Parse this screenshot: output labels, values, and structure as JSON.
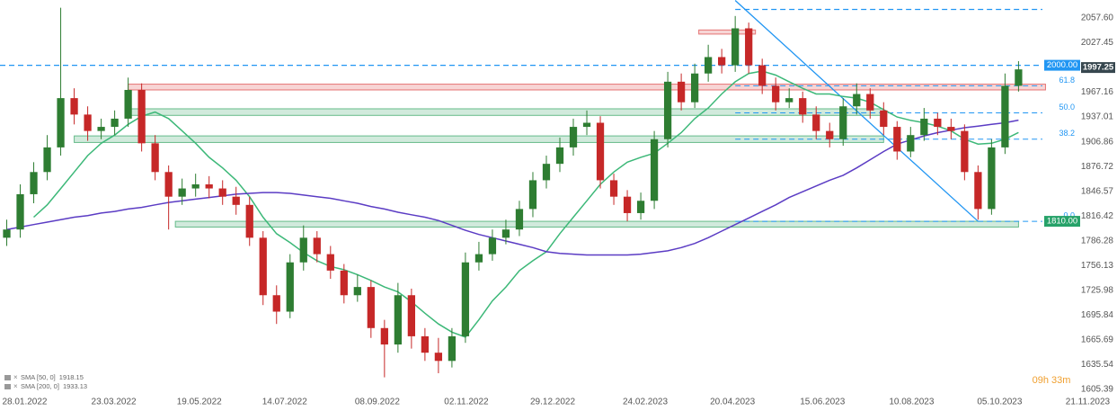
{
  "chart_data": {
    "type": "candlestick",
    "x": [
      0,
      1,
      2,
      3,
      4,
      5,
      6,
      7,
      8,
      9,
      10,
      11,
      12,
      13,
      14,
      15,
      16,
      17,
      18,
      19,
      20,
      21,
      22,
      23,
      24,
      25,
      26,
      27,
      28,
      29,
      30,
      31,
      32,
      33,
      34,
      35,
      36,
      37,
      38,
      39,
      40,
      41,
      42,
      43,
      44,
      45,
      46,
      47,
      48,
      49,
      50,
      51,
      52,
      53,
      54,
      55,
      56,
      57,
      58,
      59,
      60,
      61,
      62,
      63,
      64,
      65,
      66,
      67,
      68,
      69,
      70,
      71,
      72,
      73,
      74,
      75
    ],
    "open": [
      1790,
      1800,
      1843,
      1870,
      1900,
      1960,
      1940,
      1920,
      1925,
      1935,
      1970,
      1905,
      1870,
      1840,
      1850,
      1855,
      1850,
      1840,
      1830,
      1790,
      1720,
      1700,
      1760,
      1790,
      1770,
      1750,
      1720,
      1730,
      1680,
      1660,
      1720,
      1670,
      1650,
      1640,
      1670,
      1760,
      1770,
      1790,
      1800,
      1825,
      1860,
      1880,
      1900,
      1925,
      1930,
      1860,
      1840,
      1820,
      1835,
      1910,
      1980,
      1955,
      1990,
      2010,
      2000,
      2045,
      2000,
      1975,
      1955,
      1960,
      1940,
      1920,
      1910,
      1950,
      1965,
      1945,
      1925,
      1895,
      1915,
      1935,
      1925,
      1920,
      1870,
      1825,
      1900,
      1975
    ],
    "high": [
      1812,
      1855,
      1882,
      1915,
      2070,
      1972,
      1950,
      1935,
      1945,
      1985,
      1978,
      1915,
      1878,
      1862,
      1868,
      1865,
      1860,
      1852,
      1840,
      1798,
      1732,
      1770,
      1805,
      1798,
      1780,
      1758,
      1745,
      1738,
      1690,
      1735,
      1728,
      1680,
      1668,
      1680,
      1772,
      1785,
      1800,
      1812,
      1835,
      1870,
      1890,
      1912,
      1935,
      1945,
      1938,
      1868,
      1848,
      1845,
      1920,
      1992,
      1990,
      2002,
      2025,
      2020,
      2060,
      2052,
      2008,
      1985,
      1972,
      1968,
      1950,
      1930,
      1960,
      1978,
      1972,
      1955,
      1932,
      1925,
      1948,
      1942,
      1935,
      1928,
      1878,
      1910,
      1990,
      2005
    ],
    "low": [
      1780,
      1790,
      1832,
      1860,
      1890,
      1928,
      1908,
      1910,
      1915,
      1925,
      1895,
      1860,
      1800,
      1830,
      1840,
      1838,
      1830,
      1818,
      1780,
      1708,
      1685,
      1692,
      1750,
      1760,
      1740,
      1710,
      1712,
      1668,
      1620,
      1650,
      1655,
      1640,
      1625,
      1632,
      1662,
      1750,
      1762,
      1782,
      1792,
      1815,
      1850,
      1870,
      1890,
      1915,
      1850,
      1830,
      1810,
      1812,
      1825,
      1900,
      1945,
      1948,
      1980,
      1990,
      1992,
      1990,
      1965,
      1945,
      1948,
      1930,
      1910,
      1900,
      1902,
      1940,
      1935,
      1915,
      1885,
      1888,
      1908,
      1915,
      1910,
      1860,
      1812,
      1818,
      1892,
      1968
    ],
    "close": [
      1800,
      1843,
      1870,
      1900,
      1960,
      1940,
      1920,
      1925,
      1935,
      1970,
      1905,
      1870,
      1840,
      1850,
      1855,
      1850,
      1840,
      1830,
      1790,
      1720,
      1700,
      1760,
      1790,
      1770,
      1750,
      1720,
      1730,
      1680,
      1660,
      1720,
      1670,
      1650,
      1640,
      1670,
      1760,
      1770,
      1790,
      1800,
      1825,
      1860,
      1880,
      1900,
      1925,
      1930,
      1860,
      1840,
      1820,
      1835,
      1910,
      1980,
      1955,
      1990,
      2010,
      2000,
      2045,
      2000,
      1975,
      1955,
      1960,
      1940,
      1920,
      1910,
      1950,
      1965,
      1945,
      1925,
      1895,
      1915,
      1935,
      1925,
      1920,
      1870,
      1825,
      1900,
      1975,
      1995
    ],
    "up_color": "#2e7d32",
    "down_color": "#c62828",
    "series": [
      {
        "name": "SMA [50, 0]",
        "last_value": 1918.15,
        "color": "#3cb878",
        "values": [
          null,
          null,
          1815,
          1830,
          1850,
          1870,
          1890,
          1905,
          1915,
          1928,
          1938,
          1943,
          1935,
          1920,
          1905,
          1888,
          1875,
          1860,
          1840,
          1815,
          1795,
          1784,
          1772,
          1762,
          1755,
          1751,
          1745,
          1738,
          1730,
          1724,
          1712,
          1698,
          1685,
          1675,
          1669,
          1690,
          1713,
          1730,
          1750,
          1762,
          1773,
          1795,
          1815,
          1835,
          1855,
          1870,
          1882,
          1888,
          1893,
          1905,
          1918,
          1935,
          1948,
          1965,
          1980,
          1990,
          1993,
          1988,
          1980,
          1972,
          1965,
          1965,
          1962,
          1960,
          1955,
          1946,
          1937,
          1933,
          1930,
          1926,
          1920,
          1910,
          1904,
          1905,
          1910,
          1918.15
        ]
      },
      {
        "name": "SMA [200, 0]",
        "last_value": 1933.13,
        "color": "#5b3cc4",
        "values": [
          1800,
          1803,
          1806,
          1809,
          1812,
          1815,
          1817,
          1820,
          1822,
          1825,
          1827,
          1830,
          1833,
          1835,
          1837,
          1839,
          1841,
          1843,
          1844,
          1845,
          1845,
          1844,
          1842,
          1840,
          1838,
          1835,
          1832,
          1828,
          1825,
          1821,
          1818,
          1815,
          1811,
          1805,
          1799,
          1794,
          1790,
          1786,
          1782,
          1778,
          1773,
          1771,
          1770,
          1769,
          1769,
          1769,
          1769,
          1770,
          1772,
          1774,
          1778,
          1783,
          1790,
          1798,
          1806,
          1814,
          1822,
          1830,
          1839,
          1846,
          1853,
          1860,
          1866,
          1875,
          1885,
          1895,
          1904,
          1909,
          1914,
          1918,
          1921,
          1924,
          1926,
          1928,
          1930,
          1933.13
        ]
      }
    ],
    "zones": [
      {
        "low": 1970,
        "high": 1977,
        "from": 9,
        "to": 77,
        "color": "#e57373"
      },
      {
        "low": 1939,
        "high": 1947,
        "from": 9,
        "to": 65,
        "color": "#66bb8a"
      },
      {
        "low": 1906,
        "high": 1914,
        "from": 5,
        "to": 65,
        "color": "#66bb8a"
      },
      {
        "low": 1803,
        "high": 1810,
        "from": 12.5,
        "to": 75,
        "color": "#66bb8a"
      },
      {
        "low": 2038,
        "high": 2043,
        "from": 51.3,
        "to": 55.5,
        "color": "#e57373"
      }
    ],
    "fib_levels": [
      {
        "value": 1975,
        "label": "61.8"
      },
      {
        "value": 1942,
        "label": "50.0"
      },
      {
        "value": 1910,
        "label": "38.2"
      },
      {
        "value": 1810,
        "label": "0.0"
      }
    ],
    "trendline": {
      "x": [
        54,
        72
      ],
      "y": [
        2079,
        1810
      ]
    },
    "top_level": {
      "value": 2068,
      "from": 54
    },
    "price_labels": [
      {
        "value": 2000,
        "label": "2000.00",
        "color": "#2196f3"
      },
      {
        "value": 1810,
        "label": "1810.00",
        "color": "#26a269"
      }
    ],
    "last_price": 1997.25,
    "timer": "09h 33m",
    "xlim": [
      -0.5,
      82.3
    ],
    "ylim": [
      1602,
      2079.5
    ],
    "xticks": [
      {
        "value": 1.33,
        "label": "28.01.2022"
      },
      {
        "value": 7.93,
        "label": "23.03.2022"
      },
      {
        "value": 14.27,
        "label": "19.05.2022"
      },
      {
        "value": 20.6,
        "label": "14.07.2022"
      },
      {
        "value": 27.47,
        "label": "08.09.2022"
      },
      {
        "value": 34.07,
        "label": "02.11.2022"
      },
      {
        "value": 40.47,
        "label": "29.12.2022"
      },
      {
        "value": 47.33,
        "label": "24.02.2023"
      },
      {
        "value": 53.8,
        "label": "20.04.2023"
      },
      {
        "value": 60.47,
        "label": "15.06.2023"
      },
      {
        "value": 67.07,
        "label": "10.08.2023"
      },
      {
        "value": 73.6,
        "label": "05.10.2023"
      },
      {
        "value": 80.13,
        "label": "21.11.2023"
      }
    ],
    "yticks": [
      {
        "value": 2057.6,
        "label": "2057.60"
      },
      2027.45,
      1967.16,
      1937.01,
      1906.86,
      1876.72,
      1846.57,
      1816.42,
      1786.28,
      1756.13,
      1725.98,
      1695.84,
      1665.69,
      1635.54,
      1605.39
    ],
    "grid": false
  }
}
